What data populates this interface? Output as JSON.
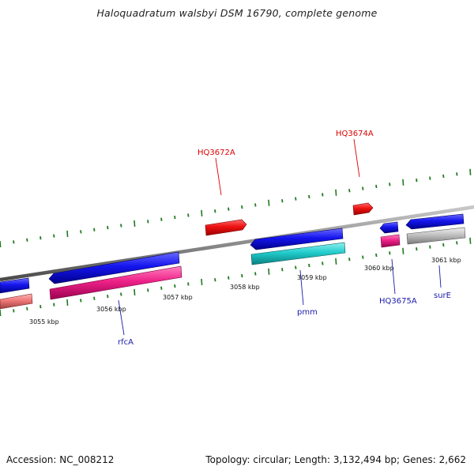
{
  "title": "Haloquadratum walsbyi DSM 16790, complete genome",
  "footer": {
    "accession": "Accession: NC_008212",
    "summary": "Topology: circular; Length: 3,132,494 bp; Genes: 2,662"
  },
  "colors": {
    "background": "#ffffff",
    "backbone": "#8c8c8c",
    "tick": "#1f7a1f",
    "label_red": "#dd0000",
    "label_blue": "#1a1aaa",
    "feature_blue": "#1010dd",
    "feature_red": "#ee1111",
    "feature_magenta": "#ee2288",
    "feature_cyan": "#22cccc",
    "feature_salmon": "#ee7777",
    "feature_gray": "#c0c0c0"
  },
  "scale_labels": [
    "3055 kbp",
    "3056 kbp",
    "3057 kbp",
    "3058 kbp",
    "3059 kbp",
    "3060 kbp",
    "3061 kbp"
  ],
  "gene_labels": [
    {
      "text": "HQ3672A",
      "color": "red"
    },
    {
      "text": "HQ3674A",
      "color": "red"
    },
    {
      "text": "rfcA",
      "color": "blue"
    },
    {
      "text": "pmm",
      "color": "blue"
    },
    {
      "text": "HQ3675A",
      "color": "blue"
    },
    {
      "text": "surE",
      "color": "blue"
    }
  ]
}
